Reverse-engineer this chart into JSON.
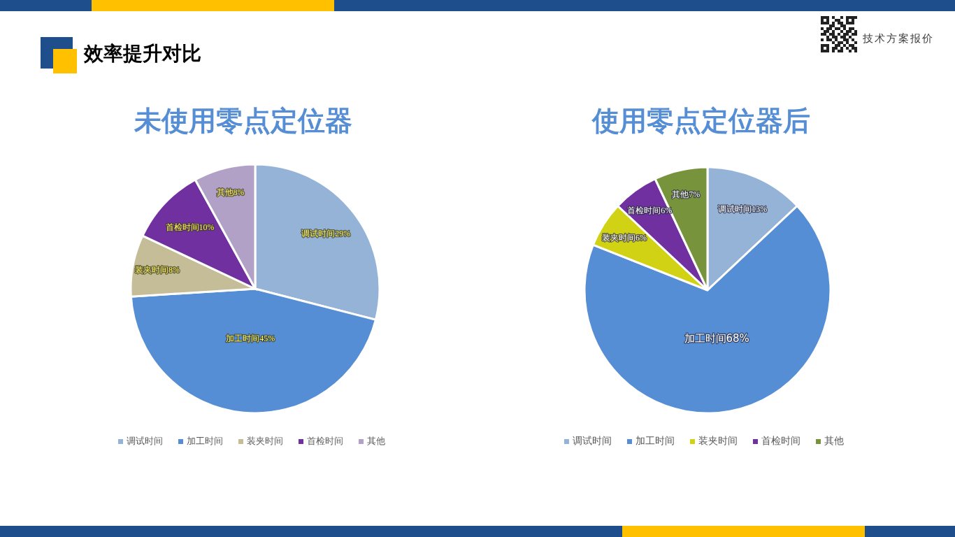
{
  "chart_data": [
    {
      "type": "pie",
      "title": "未使用零点定位器",
      "categories": [
        "调试时间",
        "加工时间",
        "装夹时间",
        "首检时间",
        "其他"
      ],
      "values": [
        29,
        45,
        8,
        10,
        8
      ],
      "colors": [
        "#95b3d7",
        "#558ed5",
        "#c4bd97",
        "#7030a0",
        "#b2a1c7"
      ],
      "value_labels": [
        "调试时间29%",
        "加工时间45%",
        "装夹时间8%",
        "首检时间10%",
        "其他8%"
      ],
      "legend": "bottom",
      "annotations": [
        "效率提升对比"
      ]
    },
    {
      "type": "pie",
      "title": "使用零点定位器后",
      "categories": [
        "调试时间",
        "加工时间",
        "装夹时间",
        "首检时间",
        "其他"
      ],
      "values": [
        13,
        68,
        6,
        6,
        7
      ],
      "colors": [
        "#95b3d7",
        "#558ed5",
        "#d2d214",
        "#7030a0",
        "#77933c"
      ],
      "value_labels": [
        "调试时间13%",
        "加工时间68%",
        "装夹时间6%",
        "首检时间6%",
        "其他7%"
      ],
      "legend": "bottom",
      "annotations": [
        "技术方案报价"
      ]
    }
  ]
}
